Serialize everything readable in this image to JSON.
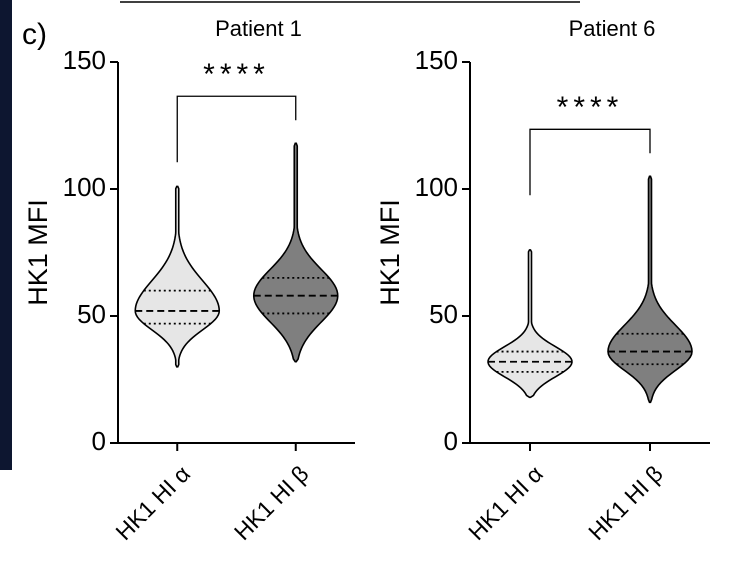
{
  "panel_label": "c)",
  "chart_data": [
    {
      "type": "violin",
      "title": "Patient 1",
      "ylabel": "HK1 MFI",
      "categories": [
        "HK1 HI α",
        "HK1 HI β"
      ],
      "series": [
        {
          "name": "HK1 HI α",
          "color": "#e6e6e6",
          "min": 30,
          "q1": 47,
          "median": 52,
          "q3": 60,
          "max": 101
        },
        {
          "name": "HK1 HI β",
          "color": "#7f7f7f",
          "min": 32,
          "q1": 51,
          "median": 58,
          "q3": 65,
          "max": 118
        }
      ],
      "annotation": "****",
      "ylim": [
        0,
        150
      ],
      "yticks": [
        0,
        50,
        100,
        150
      ]
    },
    {
      "type": "violin",
      "title": "Patient 6",
      "ylabel": "HK1 MFI",
      "categories": [
        "HK1 HI α",
        "HK1 HI β"
      ],
      "series": [
        {
          "name": "HK1 HI α",
          "color": "#e6e6e6",
          "min": 18,
          "q1": 28,
          "median": 32,
          "q3": 36,
          "max": 76
        },
        {
          "name": "HK1 HI β",
          "color": "#7f7f7f",
          "min": 16,
          "q1": 31,
          "median": 36,
          "q3": 43,
          "max": 105
        }
      ],
      "annotation": "****",
      "ylim": [
        0,
        150
      ],
      "yticks": [
        0,
        50,
        100,
        150
      ]
    }
  ]
}
